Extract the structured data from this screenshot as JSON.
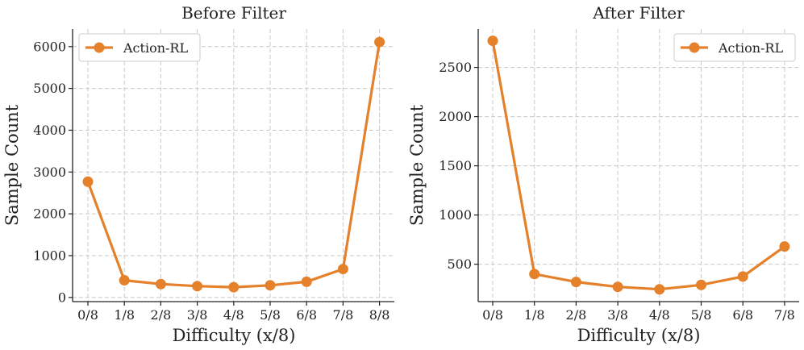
{
  "chart_data": [
    {
      "type": "line",
      "title": "Before Filter",
      "xlabel": "Difficulty (x/8)",
      "ylabel": "Sample Count",
      "categories": [
        "0/8",
        "1/8",
        "2/8",
        "3/8",
        "4/8",
        "5/8",
        "6/8",
        "7/8",
        "8/8"
      ],
      "yticks": [
        0,
        1000,
        2000,
        3000,
        4000,
        5000,
        6000
      ],
      "ylim": [
        -100,
        6420
      ],
      "series": [
        {
          "name": "Action-RL",
          "color": "#e5802b",
          "values": [
            2770,
            410,
            320,
            270,
            245,
            290,
            375,
            680,
            6110
          ]
        }
      ],
      "legend": "upper-left",
      "grid": true
    },
    {
      "type": "line",
      "title": "After Filter",
      "xlabel": "Difficulty (x/8)",
      "ylabel": "Sample Count",
      "categories": [
        "0/8",
        "1/8",
        "2/8",
        "3/8",
        "4/8",
        "5/8",
        "6/8",
        "7/8"
      ],
      "yticks": [
        500,
        1000,
        1500,
        2000,
        2500
      ],
      "ylim": [
        120,
        2890
      ],
      "series": [
        {
          "name": "Action-RL",
          "color": "#e5802b",
          "values": [
            2770,
            400,
            320,
            270,
            245,
            290,
            375,
            680
          ]
        }
      ],
      "legend": "upper-right",
      "grid": true
    }
  ]
}
